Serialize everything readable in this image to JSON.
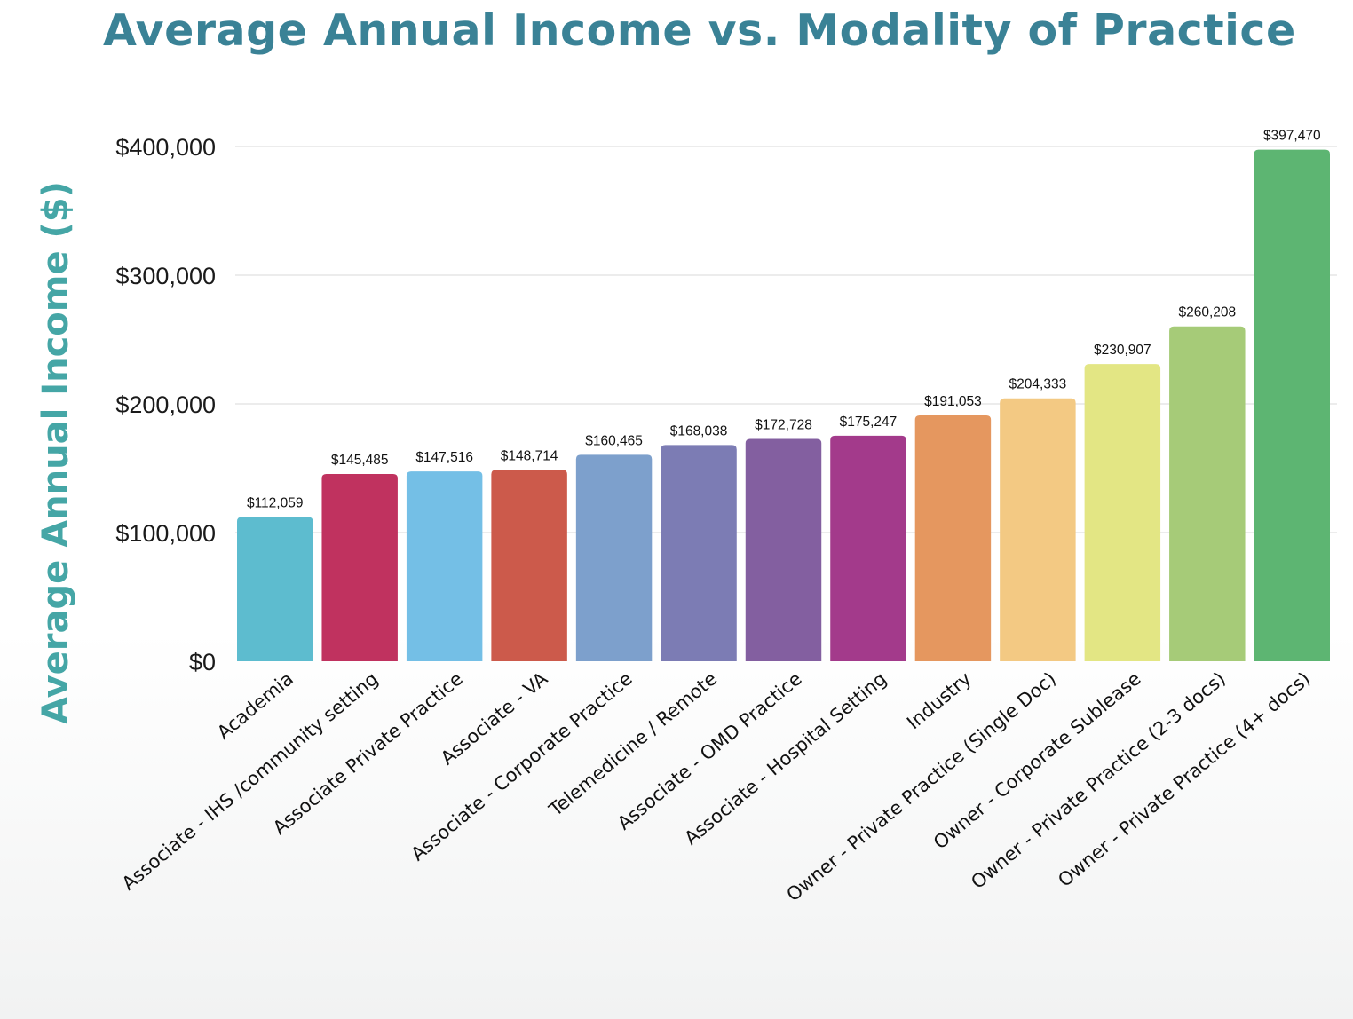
{
  "chart_data": {
    "type": "bar",
    "title": "Average Annual Income vs. Modality of Practice",
    "xlabel": "",
    "ylabel": "Average Annual Income ($)",
    "ylim": [
      0,
      400000
    ],
    "yticks": [
      0,
      100000,
      200000,
      300000,
      400000
    ],
    "ytick_labels": [
      "$0",
      "$100,000",
      "$200,000",
      "$300,000",
      "$400,000"
    ],
    "grid": true,
    "legend": "none",
    "categories": [
      "Academia",
      "Associate - IHS /community setting",
      "Associate Private Practice",
      "Associate - VA",
      "Associate - Corporate Practice",
      "Telemedicine / Remote",
      "Associate - OMD Practice",
      "Associate - Hospital Setting",
      "Industry",
      "Owner - Private Practice (Single Doc)",
      "Owner - Corporate Sublease",
      "Owner - Private Practice (2-3 docs)",
      "Owner - Private Practice (4+ docs)"
    ],
    "values": [
      112059,
      145485,
      147516,
      148714,
      160465,
      168038,
      172728,
      175247,
      191053,
      204333,
      230907,
      260208,
      397470
    ],
    "data_labels": [
      "$112,059",
      "$145,485",
      "$147,516",
      "$148,714",
      "$160,465",
      "$168,038",
      "$172,728",
      "$175,247",
      "$191,053",
      "$204,333",
      "$230,907",
      "$260,208",
      "$397,470"
    ],
    "colors": [
      "#5dbccf",
      "#c0325f",
      "#74bfe6",
      "#cc5a4b",
      "#7da0cc",
      "#7c7cb4",
      "#835fa0",
      "#a33a8b",
      "#e5975f",
      "#f3c983",
      "#e3e684",
      "#a6cb78",
      "#5db572"
    ]
  },
  "theme": {
    "title_color": "#3a8296",
    "ylabel_color": "#45a6a6"
  }
}
